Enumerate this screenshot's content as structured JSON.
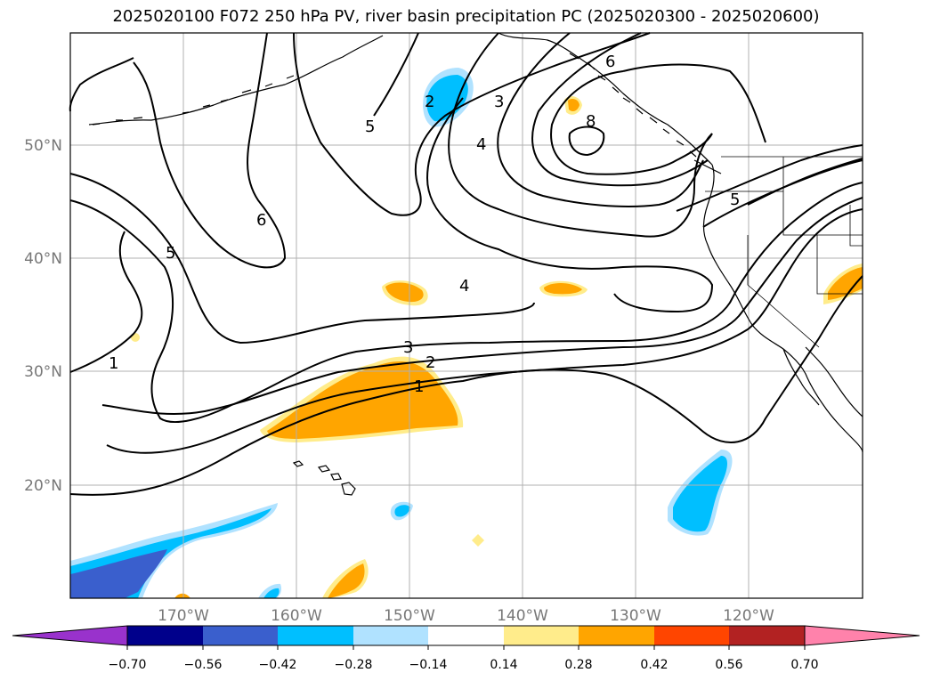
{
  "title": "2025020100 F072 250 hPa PV, river basin precipitation PC (2025020300 - 2025020600)",
  "lat_labels": [
    "50°N",
    "40°N",
    "30°N",
    "20°N"
  ],
  "lon_labels": [
    "170°W",
    "160°W",
    "150°W",
    "140°W",
    "130°W",
    "120°W"
  ],
  "pv_contour_labels": [
    "1",
    "2",
    "3",
    "4",
    "5",
    "6",
    "8",
    "1",
    "5",
    "6",
    "3",
    "4",
    "2",
    "5"
  ],
  "colorbar": {
    "tick_labels": [
      "−0.70",
      "−0.56",
      "−0.42",
      "−0.28",
      "−0.14",
      "0.14",
      "0.28",
      "0.42",
      "0.56",
      "0.70"
    ],
    "colors": [
      "#9932cc",
      "#00008b",
      "#3a5fcd",
      "#00bfff",
      "#b0e2ff",
      "#ffffff",
      "#ffec8b",
      "#ffa500",
      "#ff4500",
      "#b22222",
      "#ff82ab"
    ]
  },
  "map_colors": {
    "land_outline": "#000000",
    "pv_contour": "#000000",
    "grid": "#b0b0b0"
  }
}
